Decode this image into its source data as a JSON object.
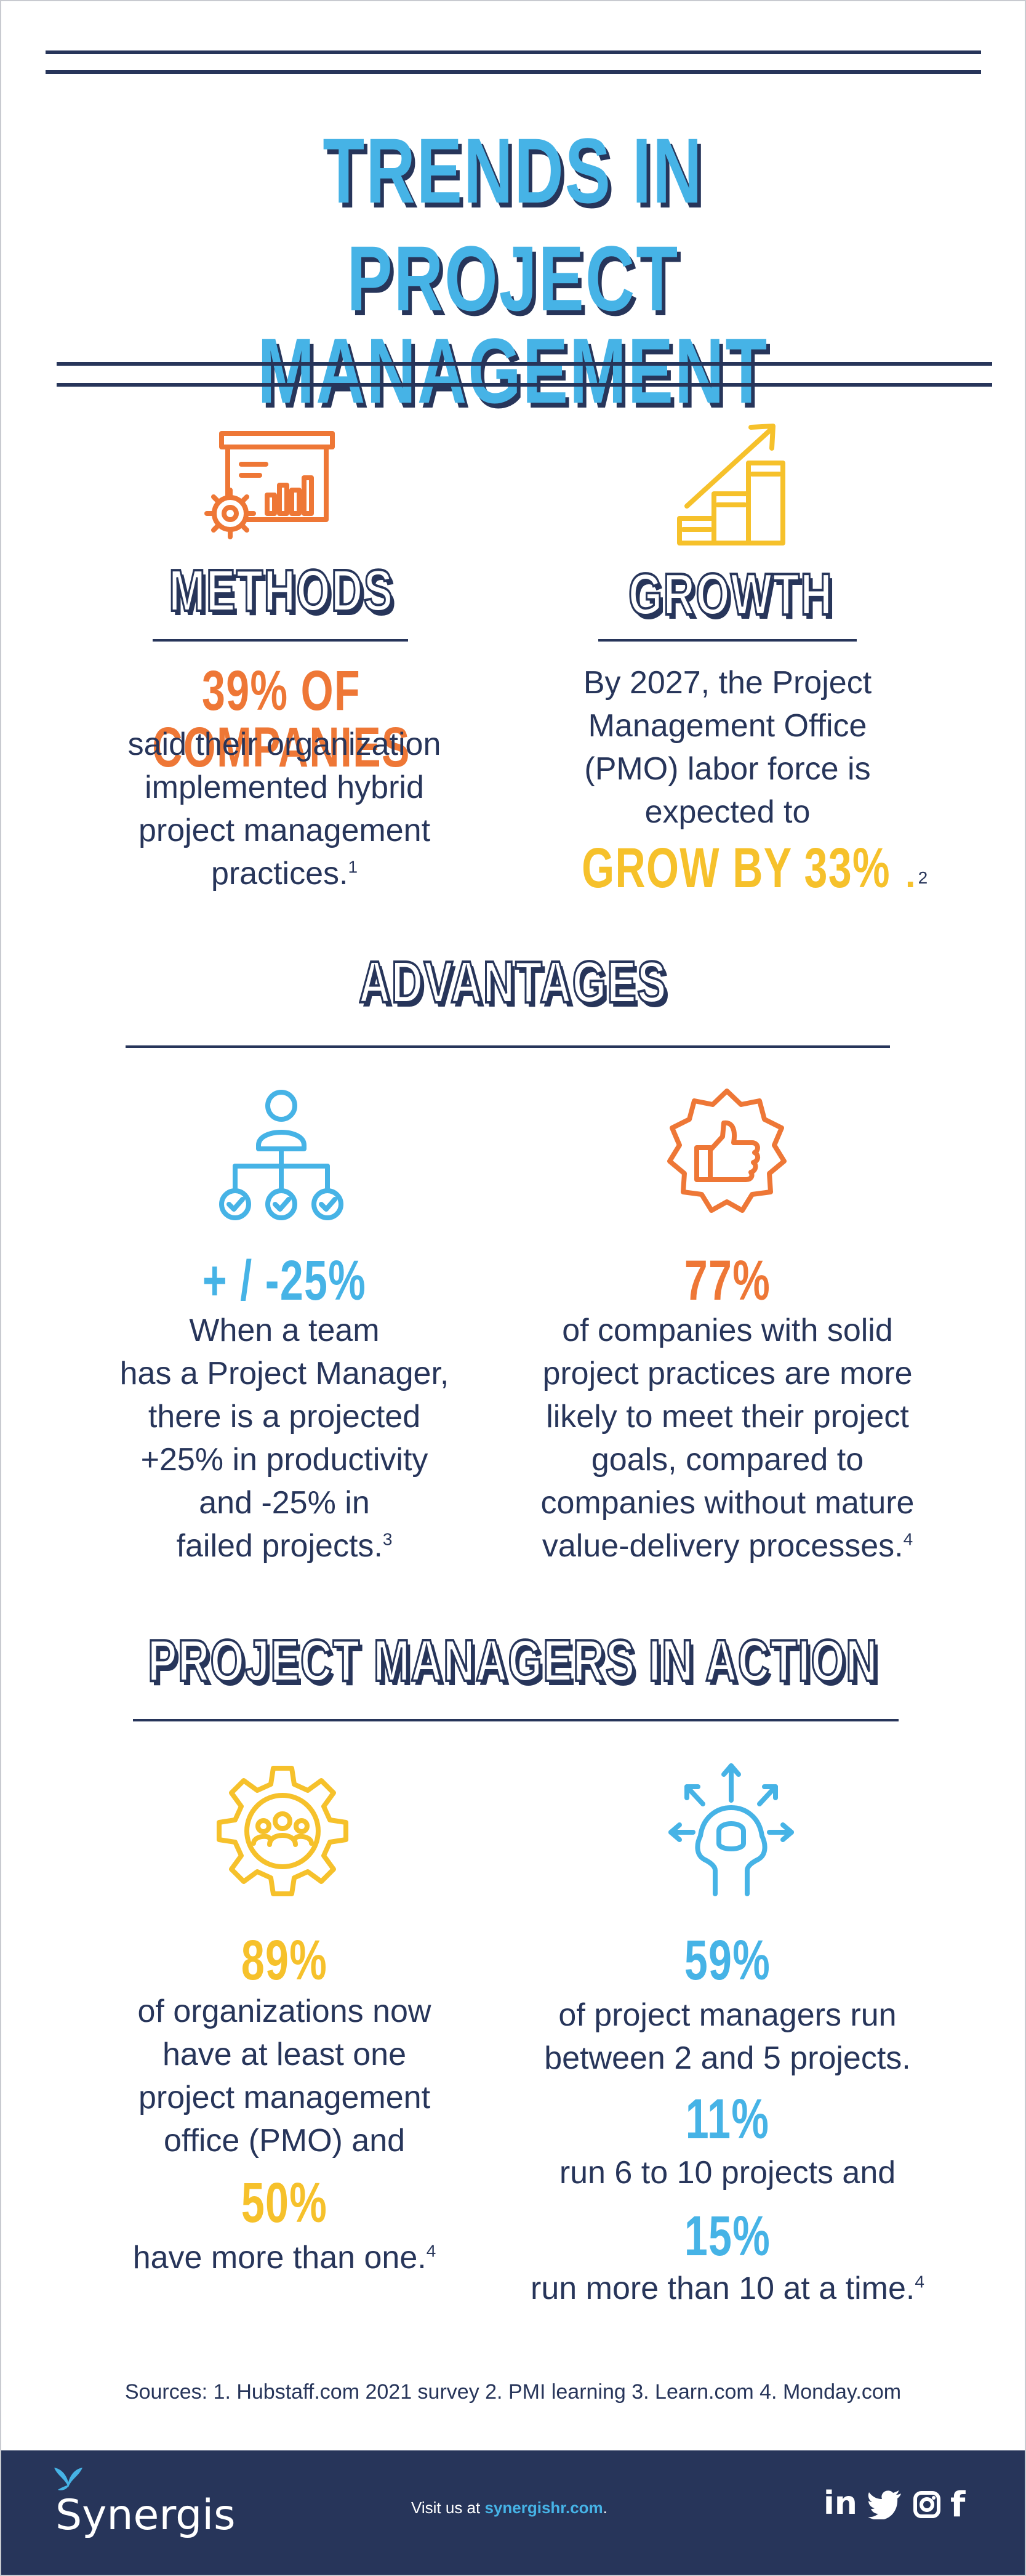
{
  "title": {
    "line1": "TRENDS IN",
    "line2": "PROJECT MANAGEMENT"
  },
  "methods": {
    "heading": "METHODS",
    "stat": "39% OF COMPANIES",
    "text1": "said their organization",
    "text2": "implemented hybrid",
    "text3": "project management",
    "text4": "practices.",
    "ref": "1"
  },
  "growth": {
    "heading": "GROWTH",
    "text1": "By  2027, the Project",
    "text2": "Management Office",
    "text3": "(PMO) labor force is",
    "text4": "expected to",
    "stat": "GROW BY 33%",
    "stat_end": ".",
    "ref": "2"
  },
  "advantages": {
    "heading": "ADVANTAGES",
    "left": {
      "stat": "+ / -25%",
      "text1": "When a team",
      "text2": "has a Project Manager,",
      "text3": "there is a projected",
      "text4": "+25% in productivity",
      "text5": "and -25% in",
      "text6": "failed projects.",
      "ref": "3"
    },
    "right": {
      "stat": "77%",
      "text1": "of companies with solid",
      "text2": "project practices are more",
      "text3": "likely to meet their project",
      "text4": "goals, compared to",
      "text5": "companies without mature",
      "text6": "value-delivery processes.",
      "ref": "4"
    }
  },
  "action": {
    "heading": "PROJECT MANAGERS IN ACTION",
    "left": {
      "stat1": "89%",
      "text1": "of organizations now",
      "text2": "have at least one",
      "text3": "project management",
      "text4": "office (PMO) and",
      "stat2": "50%",
      "text5": "have more than one.",
      "ref": "4"
    },
    "right": {
      "stat1": "59%",
      "text1": "of project managers run",
      "text2": "between 2 and 5 projects.",
      "stat2": "11%",
      "text3": "run 6 to 10 projects and",
      "stat3": "15%",
      "text4": "run more than 10 at a time.",
      "ref": "4"
    }
  },
  "sources": "Sources: 1. Hubstaff.com 2021 survey 2. PMI learning 3. Learn.com 4. Monday.com",
  "footer": {
    "logo": "Synergis",
    "visit_prefix": "Visit us at ",
    "visit_link": "synergishr.com",
    "visit_suffix": ".",
    "social_icons": [
      "linkedin-icon",
      "twitter-icon",
      "instagram-icon",
      "facebook-icon"
    ],
    "social_linkedin": "in",
    "social_facebook": "f"
  },
  "colors": {
    "navy": "#27355a",
    "blue": "#46b3e6",
    "orange": "#ee7736",
    "yellow": "#f6c12b"
  }
}
